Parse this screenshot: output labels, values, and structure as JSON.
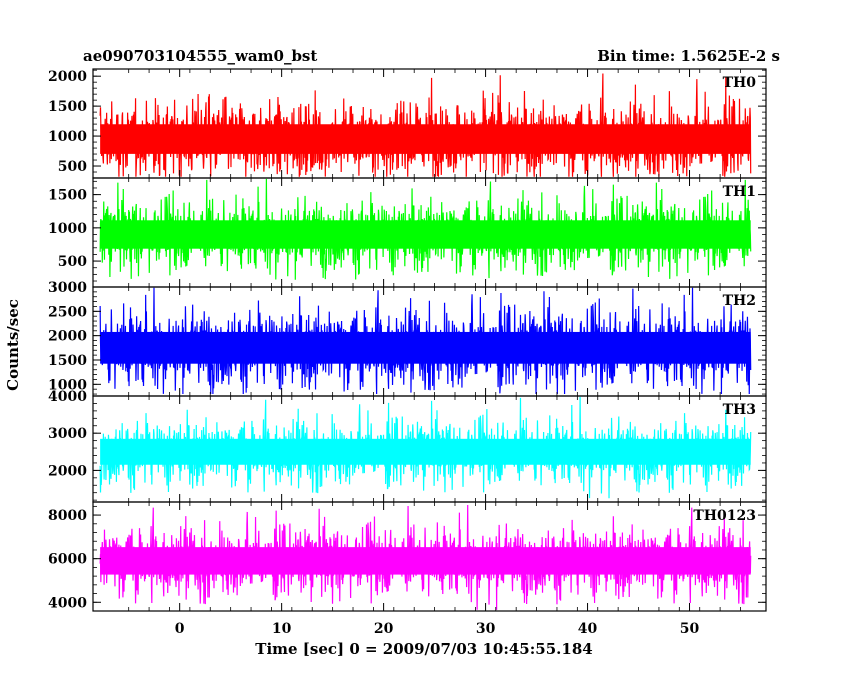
{
  "chart_data": {
    "type": "line",
    "title_left": "ae090703104555_wam0_bst",
    "title_right": "Bin time: 1.5625E-2 s",
    "xlabel": "Time [sec] 0 = 2009/07/03 10:45:55.184",
    "ylabel": "Counts/sec",
    "xlim": [
      -8.5,
      57.5
    ],
    "x_ticks": [
      0,
      10,
      20,
      30,
      40,
      50
    ],
    "x_data_range": [
      -7.8,
      56
    ],
    "bin_time": 0.015625,
    "grid": false,
    "panels": [
      {
        "name": "TH0",
        "color": "#ff0000",
        "ylim": [
          300,
          2120
        ],
        "ticks": [
          500,
          1000,
          1500,
          2000
        ],
        "mean": 950,
        "band_low": 450,
        "band_high": 1550,
        "spike_max": 2120,
        "dip_min": 320
      },
      {
        "name": "TH1",
        "color": "#00ff00",
        "ylim": [
          110,
          1750
        ],
        "ticks": [
          500,
          1000,
          1500
        ],
        "mean": 900,
        "band_low": 400,
        "band_high": 1350,
        "spike_max": 1750,
        "dip_min": 220
      },
      {
        "name": "TH2",
        "color": "#0000ff",
        "ylim": [
          760,
          3000
        ],
        "ticks": [
          1000,
          1500,
          2000,
          2500,
          3000
        ],
        "mean": 1750,
        "band_low": 1050,
        "band_high": 2500,
        "spike_max": 3000,
        "dip_min": 800
      },
      {
        "name": "TH3",
        "color": "#00ffff",
        "ylim": [
          1150,
          4000
        ],
        "ticks": [
          2000,
          3000,
          4000
        ],
        "mean": 2500,
        "band_low": 1700,
        "band_high": 3250,
        "spike_max": 4000,
        "dip_min": 1250
      },
      {
        "name": "TH0123",
        "color": "#ff00ff",
        "ylim": [
          3600,
          8600
        ],
        "ticks": [
          4000,
          6000,
          8000
        ],
        "mean": 5900,
        "band_low": 4500,
        "band_high": 7300,
        "spike_max": 8500,
        "dip_min": 3650
      }
    ]
  }
}
